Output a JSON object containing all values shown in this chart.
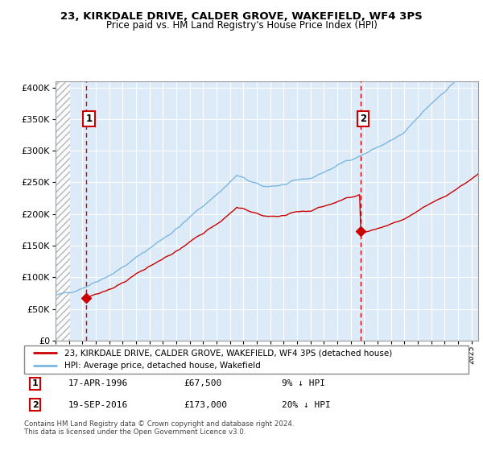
{
  "title": "23, KIRKDALE DRIVE, CALDER GROVE, WAKEFIELD, WF4 3PS",
  "subtitle": "Price paid vs. HM Land Registry's House Price Index (HPI)",
  "ylim": [
    0,
    410000
  ],
  "yticks": [
    0,
    50000,
    100000,
    150000,
    200000,
    250000,
    300000,
    350000,
    400000
  ],
  "hpi_color": "#7bb8e0",
  "price_color": "#cc0000",
  "vline_color": "#cc0000",
  "bg_color": "#ddeaf8",
  "grid_color": "#ffffff",
  "purchase1_date": 1996.29,
  "purchase1_price": 67500,
  "purchase2_date": 2016.72,
  "purchase2_price": 173000,
  "legend_line1": "23, KIRKDALE DRIVE, CALDER GROVE, WAKEFIELD, WF4 3PS (detached house)",
  "legend_line2": "HPI: Average price, detached house, Wakefield",
  "annotation1_date": "17-APR-1996",
  "annotation1_price": "£67,500",
  "annotation1_hpi": "9% ↓ HPI",
  "annotation2_date": "19-SEP-2016",
  "annotation2_price": "£173,000",
  "annotation2_hpi": "20% ↓ HPI",
  "footer": "Contains HM Land Registry data © Crown copyright and database right 2024.\nThis data is licensed under the Open Government Licence v3.0.",
  "xmin": 1994.0,
  "xmax": 2025.5
}
